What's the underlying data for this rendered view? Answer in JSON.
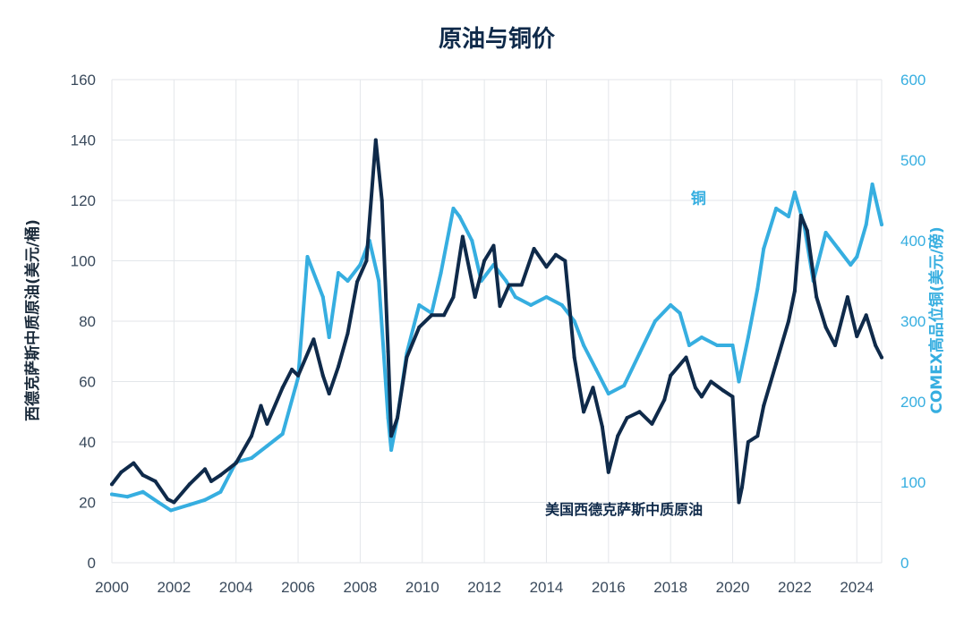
{
  "chart_data": {
    "type": "line",
    "title": "原油与铜价",
    "ylabel_left": "西德克萨斯中质原油(美元/桶)",
    "ylabel_right": "COMEX高品位铜(美元/磅)",
    "ylim_left": [
      0,
      160
    ],
    "ylim_right": [
      0,
      600
    ],
    "yticks_left": [
      "0",
      "20",
      "40",
      "60",
      "80",
      "100",
      "120",
      "140",
      "160"
    ],
    "yticks_right": [
      "0",
      "100",
      "200",
      "300",
      "400",
      "500",
      "600"
    ],
    "xlim": [
      2000,
      2024.8
    ],
    "xticks": [
      "2000",
      "2002",
      "2004",
      "2006",
      "2008",
      "2010",
      "2012",
      "2014",
      "2016",
      "2018",
      "2020",
      "2022",
      "2024"
    ],
    "grid": true,
    "colors": {
      "oil": "#0f2a4a",
      "copper": "#36aee0"
    },
    "series": [
      {
        "name": "美国西德克萨斯中质原油",
        "axis": "left",
        "color": "#0f2a4a",
        "x": [
          2000.0,
          2000.3,
          2000.7,
          2001.0,
          2001.4,
          2001.8,
          2002.0,
          2002.5,
          2003.0,
          2003.2,
          2003.5,
          2004.0,
          2004.5,
          2004.8,
          2005.0,
          2005.5,
          2005.8,
          2006.0,
          2006.5,
          2006.8,
          2007.0,
          2007.3,
          2007.6,
          2007.9,
          2008.2,
          2008.5,
          2008.7,
          2008.9,
          2009.0,
          2009.2,
          2009.5,
          2009.9,
          2010.3,
          2010.7,
          2011.0,
          2011.3,
          2011.7,
          2012.0,
          2012.3,
          2012.5,
          2012.8,
          2013.2,
          2013.6,
          2014.0,
          2014.3,
          2014.6,
          2014.9,
          2015.2,
          2015.5,
          2015.8,
          2016.0,
          2016.3,
          2016.6,
          2017.0,
          2017.4,
          2017.8,
          2018.0,
          2018.5,
          2018.8,
          2019.0,
          2019.3,
          2019.7,
          2020.0,
          2020.2,
          2020.3,
          2020.5,
          2020.8,
          2021.0,
          2021.4,
          2021.8,
          2022.0,
          2022.2,
          2022.4,
          2022.7,
          2023.0,
          2023.3,
          2023.7,
          2024.0,
          2024.3,
          2024.6,
          2024.8
        ],
        "values": [
          26,
          30,
          33,
          29,
          27,
          21,
          20,
          26,
          31,
          27,
          29,
          33,
          42,
          52,
          46,
          58,
          64,
          62,
          74,
          62,
          56,
          65,
          76,
          93,
          100,
          140,
          120,
          70,
          42,
          48,
          68,
          78,
          82,
          82,
          88,
          108,
          88,
          100,
          105,
          85,
          92,
          92,
          104,
          98,
          102,
          100,
          68,
          50,
          58,
          45,
          30,
          42,
          48,
          50,
          46,
          54,
          62,
          68,
          58,
          55,
          60,
          57,
          55,
          20,
          25,
          40,
          42,
          52,
          66,
          80,
          90,
          115,
          110,
          88,
          78,
          72,
          88,
          75,
          82,
          72,
          68
        ]
      },
      {
        "name": "铜",
        "axis": "right",
        "color": "#36aee0",
        "x": [
          2000.0,
          2000.5,
          2001.0,
          2001.5,
          2001.9,
          2002.5,
          2003.0,
          2003.5,
          2004.0,
          2004.5,
          2005.0,
          2005.5,
          2006.0,
          2006.3,
          2006.6,
          2006.8,
          2007.0,
          2007.3,
          2007.6,
          2008.0,
          2008.3,
          2008.6,
          2008.9,
          2009.0,
          2009.2,
          2009.5,
          2009.9,
          2010.3,
          2010.6,
          2011.0,
          2011.2,
          2011.6,
          2011.9,
          2012.3,
          2012.7,
          2013.0,
          2013.5,
          2014.0,
          2014.5,
          2014.9,
          2015.2,
          2015.6,
          2016.0,
          2016.5,
          2017.0,
          2017.5,
          2018.0,
          2018.3,
          2018.6,
          2019.0,
          2019.5,
          2020.0,
          2020.2,
          2020.5,
          2020.8,
          2021.0,
          2021.4,
          2021.8,
          2022.0,
          2022.3,
          2022.6,
          2023.0,
          2023.4,
          2023.8,
          2024.0,
          2024.3,
          2024.5,
          2024.8
        ],
        "values": [
          85,
          82,
          88,
          75,
          65,
          72,
          78,
          88,
          125,
          130,
          145,
          160,
          230,
          380,
          350,
          330,
          280,
          360,
          350,
          370,
          400,
          350,
          180,
          140,
          180,
          260,
          320,
          310,
          360,
          440,
          430,
          400,
          350,
          370,
          350,
          330,
          320,
          330,
          320,
          300,
          270,
          240,
          210,
          220,
          260,
          300,
          320,
          310,
          270,
          280,
          270,
          270,
          225,
          280,
          340,
          390,
          440,
          430,
          460,
          420,
          350,
          410,
          390,
          370,
          380,
          420,
          470,
          420
        ]
      }
    ],
    "annotations": [
      {
        "text": "铜",
        "series": "copper",
        "at": {
          "x": 2018.9,
          "y": 119
        }
      },
      {
        "text": "美国西德克萨斯中质原油",
        "series": "oil",
        "at": {
          "x": 2016.5,
          "y": 16
        }
      }
    ]
  }
}
